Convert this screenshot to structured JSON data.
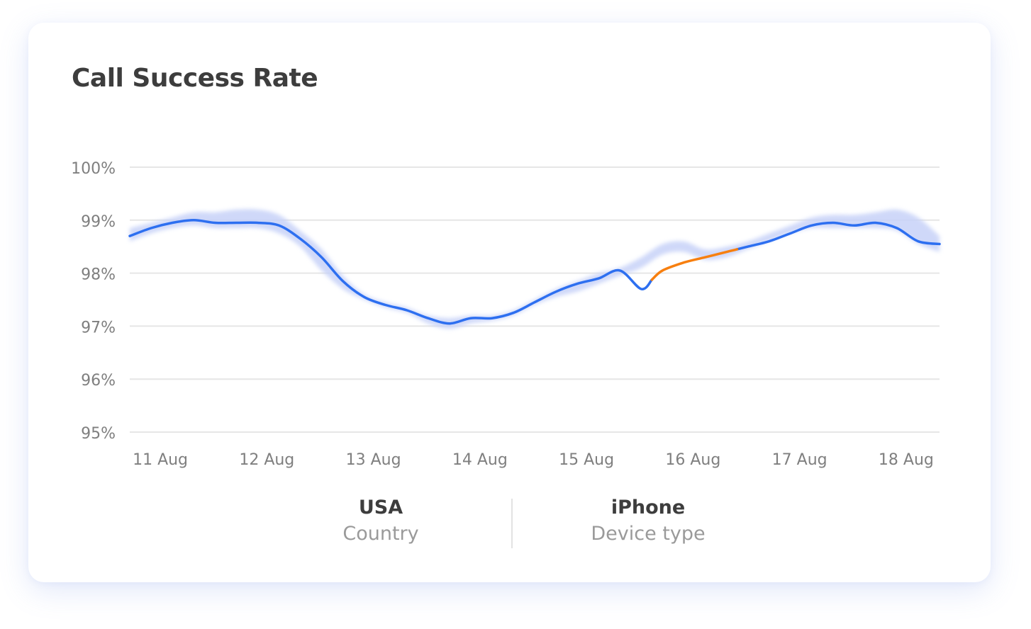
{
  "card": {
    "title": "Call Success Rate"
  },
  "filters": [
    {
      "value": "USA",
      "label": "Country"
    },
    {
      "value": "iPhone",
      "label": "Device type"
    }
  ],
  "colors": {
    "line": "#2d6ff0",
    "band": "#c7d2f8",
    "anomaly": "#f77f0f",
    "grid": "#e6e6e6",
    "tick_text": "#7f7f7f"
  },
  "chart_data": {
    "type": "line",
    "title": "Call Success Rate",
    "xlabel": "",
    "ylabel": "",
    "x_tick_labels": [
      "11 Aug",
      "12 Aug",
      "13 Aug",
      "14 Aug",
      "15 Aug",
      "16 Aug",
      "17 Aug",
      "18 Aug"
    ],
    "y_tick_labels": [
      "95%",
      "96%",
      "97%",
      "98%",
      "99%",
      "100%"
    ],
    "y_ticks": [
      95,
      96,
      97,
      98,
      99,
      100
    ],
    "ylim": [
      95,
      100
    ],
    "xlim": [
      10.7,
      18.3
    ],
    "grid": true,
    "legend": "none",
    "x_unit": "day of August",
    "series": [
      {
        "x": [
          10.7,
          10.9,
          11.1,
          11.3,
          11.5,
          11.7,
          11.9,
          12.1,
          12.3,
          12.5,
          12.7,
          12.9,
          13.1,
          13.3,
          13.5,
          13.7,
          13.9,
          14.1,
          14.3,
          14.5,
          14.7,
          14.9,
          15.1,
          15.3,
          15.5,
          15.7,
          15.9,
          16.1,
          16.3,
          16.5,
          16.7,
          16.9,
          17.1,
          17.3,
          17.5,
          17.7,
          17.9,
          18.1,
          18.3
        ],
        "values": [
          98.7,
          98.85,
          98.95,
          99.0,
          98.95,
          98.95,
          98.95,
          98.9,
          98.65,
          98.3,
          97.85,
          97.55,
          97.4,
          97.3,
          97.15,
          97.05,
          97.15,
          97.15,
          97.25,
          97.45,
          97.65,
          97.8,
          97.9,
          98.05,
          97.7,
          98.05,
          98.2,
          98.3,
          98.4,
          98.5,
          98.6,
          98.75,
          98.9,
          98.95,
          98.9,
          98.95,
          98.85,
          98.6,
          98.55
        ],
        "anomaly_x_range": [
          15.6,
          16.4
        ]
      }
    ],
    "expected_band": {
      "x": [
        10.7,
        10.9,
        11.1,
        11.3,
        11.5,
        11.7,
        11.9,
        12.1,
        12.3,
        12.5,
        12.7,
        12.9,
        13.1,
        13.3,
        13.5,
        13.7,
        13.9,
        14.1,
        14.3,
        14.5,
        14.7,
        14.9,
        15.1,
        15.3,
        15.5,
        15.7,
        15.9,
        16.1,
        16.3,
        16.5,
        16.7,
        16.9,
        17.1,
        17.3,
        17.5,
        17.7,
        17.9,
        18.1,
        18.3
      ],
      "upper": [
        98.85,
        98.95,
        99.05,
        99.15,
        99.15,
        99.2,
        99.2,
        99.1,
        98.8,
        98.45,
        97.95,
        97.6,
        97.45,
        97.35,
        97.2,
        97.15,
        97.2,
        97.2,
        97.3,
        97.5,
        97.7,
        97.85,
        98.0,
        98.1,
        98.3,
        98.55,
        98.6,
        98.45,
        98.5,
        98.6,
        98.75,
        98.9,
        99.05,
        99.1,
        99.1,
        99.15,
        99.2,
        99.05,
        98.7
      ],
      "lower": [
        98.6,
        98.75,
        98.85,
        98.9,
        98.85,
        98.85,
        98.85,
        98.75,
        98.5,
        98.05,
        97.7,
        97.5,
        97.35,
        97.25,
        97.05,
        96.95,
        97.05,
        97.1,
        97.2,
        97.4,
        97.55,
        97.65,
        97.8,
        97.95,
        98.1,
        98.35,
        98.4,
        98.25,
        98.3,
        98.45,
        98.6,
        98.75,
        98.85,
        98.85,
        98.85,
        98.85,
        98.8,
        98.55,
        98.4
      ]
    }
  }
}
